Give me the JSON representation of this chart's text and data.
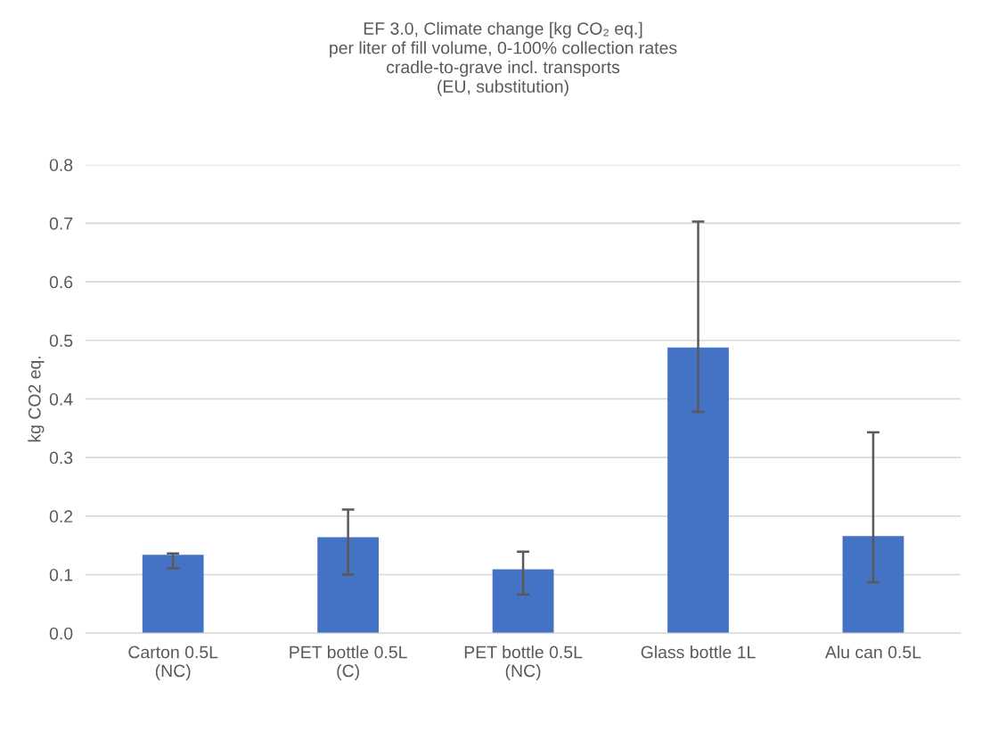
{
  "chart_data": {
    "type": "bar",
    "title": "EF 3.0, Climate change [kg CO₂ eq.]\nper liter of fill volume, 0-100% collection rates\ncradle-to-grave incl. transports\n(EU, substitution)",
    "ylabel": "kg CO2 eq.",
    "categories": [
      "Carton 0.5L\n(NC)",
      "PET bottle 0.5L\n(C)",
      "PET bottle 0.5L\n(NC)",
      "Glass bottle 1L",
      "Alu can 0.5L"
    ],
    "values": [
      0.134,
      0.164,
      0.109,
      0.488,
      0.166
    ],
    "errors": [
      [
        0.111,
        0.136
      ],
      [
        0.1,
        0.211
      ],
      [
        0.066,
        0.139
      ],
      [
        0.378,
        0.703
      ],
      [
        0.087,
        0.343
      ]
    ],
    "color": "#4472c4",
    "ylim": [
      0,
      0.8
    ],
    "yticks": [
      {
        "value": 0,
        "label": "0.0"
      },
      0.1,
      0.2,
      0.3,
      0.4,
      0.5,
      0.6,
      0.7,
      0.8
    ],
    "grid": "y",
    "legend": false
  }
}
